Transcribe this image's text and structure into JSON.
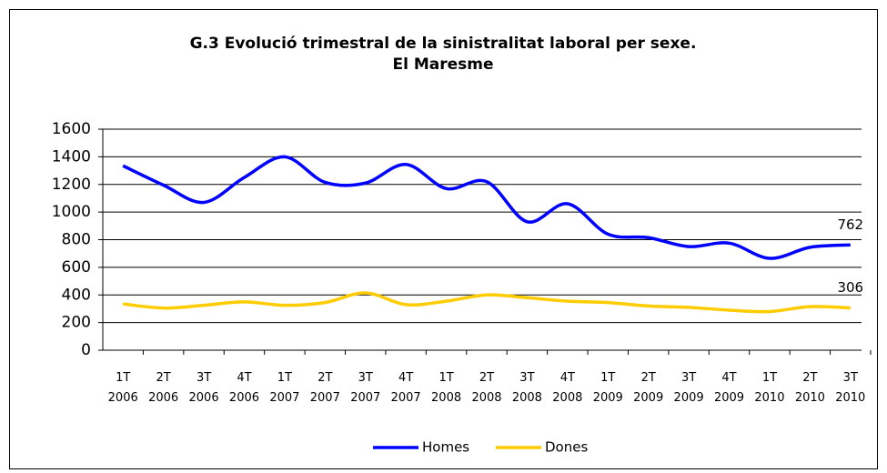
{
  "chart_data": {
    "type": "line",
    "title": "G.3 Evolució trimestral de la sinistralitat laboral per sexe.",
    "subtitle": "El Maresme",
    "categories": [
      [
        "1T",
        "2006"
      ],
      [
        "2T",
        "2006"
      ],
      [
        "3T",
        "2006"
      ],
      [
        "4T",
        "2006"
      ],
      [
        "1T",
        "2007"
      ],
      [
        "2T",
        "2007"
      ],
      [
        "3T",
        "2007"
      ],
      [
        "4T",
        "2007"
      ],
      [
        "1T",
        "2008"
      ],
      [
        "2T",
        "2008"
      ],
      [
        "3T",
        "2008"
      ],
      [
        "4T",
        "2008"
      ],
      [
        "1T",
        "2009"
      ],
      [
        "2T",
        "2009"
      ],
      [
        "3T",
        "2009"
      ],
      [
        "4T",
        "2009"
      ],
      [
        "1T",
        "2010"
      ],
      [
        "2T",
        "2010"
      ],
      [
        "3T",
        "2010"
      ]
    ],
    "series": [
      {
        "name": "Homes",
        "color": "#0000ff",
        "values": [
          1335,
          1195,
          1070,
          1250,
          1400,
          1215,
          1210,
          1345,
          1170,
          1220,
          930,
          1060,
          840,
          815,
          750,
          775,
          665,
          745,
          762
        ]
      },
      {
        "name": "Dones",
        "color": "#ffcc00",
        "values": [
          335,
          305,
          325,
          350,
          325,
          345,
          415,
          330,
          355,
          400,
          380,
          355,
          345,
          320,
          310,
          290,
          280,
          315,
          306
        ]
      }
    ],
    "ylim": [
      0,
      1600
    ],
    "yticks": [
      0,
      200,
      400,
      600,
      800,
      1000,
      1200,
      1400,
      1600
    ],
    "grid": true,
    "legend": "bottom"
  }
}
